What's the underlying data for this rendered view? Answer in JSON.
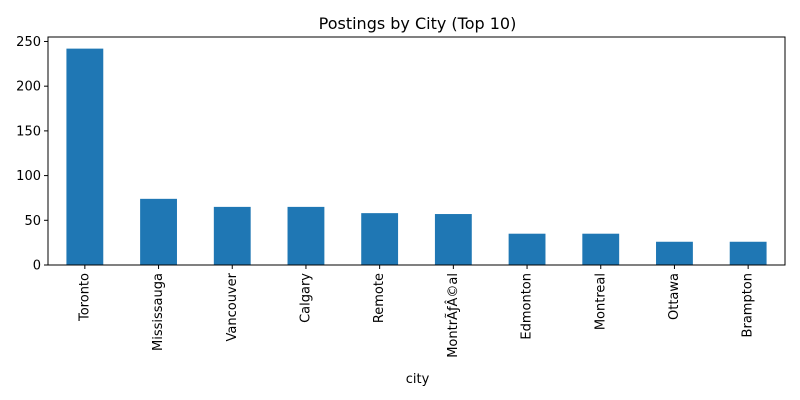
{
  "chart_data": {
    "type": "bar",
    "title": "Postings by City (Top 10)",
    "xlabel": "city",
    "ylabel": "",
    "categories": [
      "Toronto",
      "Mississauga",
      "Vancouver",
      "Calgary",
      "Remote",
      "MontrÃƒÂ©al",
      "Edmonton",
      "Montreal",
      "Ottawa",
      "Brampton"
    ],
    "values": [
      242,
      74,
      65,
      65,
      58,
      57,
      35,
      35,
      26,
      26
    ],
    "ylim": [
      0,
      255
    ],
    "yticks": [
      0,
      50,
      100,
      150,
      200,
      250
    ],
    "grid": false,
    "legend": "none",
    "bar_color": "#1f77b4"
  }
}
